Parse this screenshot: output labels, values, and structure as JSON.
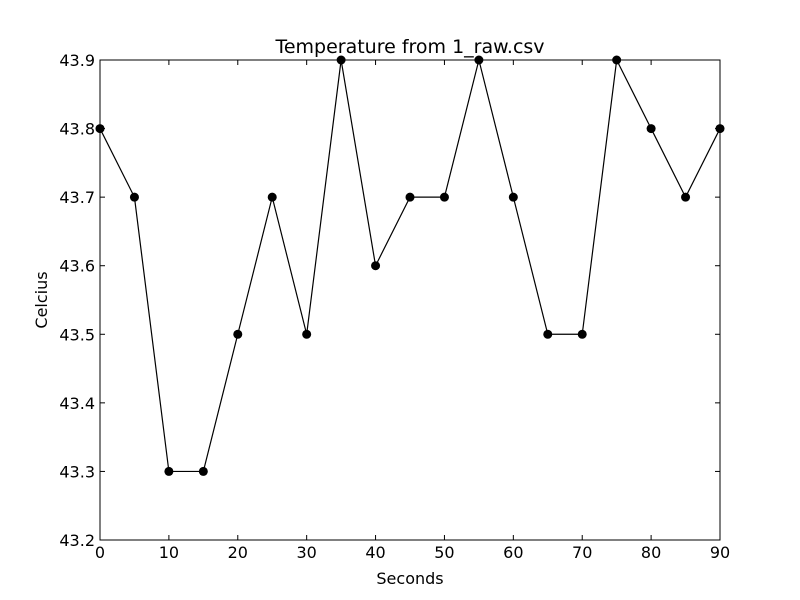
{
  "chart_data": {
    "type": "line",
    "title": "Temperature from 1_raw.csv",
    "xlabel": "Seconds",
    "ylabel": "Celcius",
    "xlim": [
      0,
      90
    ],
    "ylim": [
      43.2,
      43.9
    ],
    "xticks": [
      "0",
      "10",
      "20",
      "30",
      "40",
      "50",
      "60",
      "70",
      "80",
      "90"
    ],
    "yticks": [
      "43.2",
      "43.3",
      "43.4",
      "43.5",
      "43.6",
      "43.7",
      "43.8",
      "43.9"
    ],
    "grid": false,
    "legend": "none",
    "series": [
      {
        "color": "#000000",
        "marker": "circle",
        "x": [
          0,
          5,
          10,
          15,
          20,
          25,
          30,
          35,
          40,
          45,
          50,
          55,
          60,
          65,
          70,
          75,
          80,
          85,
          90
        ],
        "y": [
          43.8,
          43.7,
          43.3,
          43.3,
          43.5,
          43.7,
          43.5,
          43.9,
          43.6,
          43.7,
          43.7,
          43.9,
          43.7,
          43.5,
          43.5,
          43.9,
          43.8,
          43.7,
          43.8
        ]
      }
    ]
  }
}
